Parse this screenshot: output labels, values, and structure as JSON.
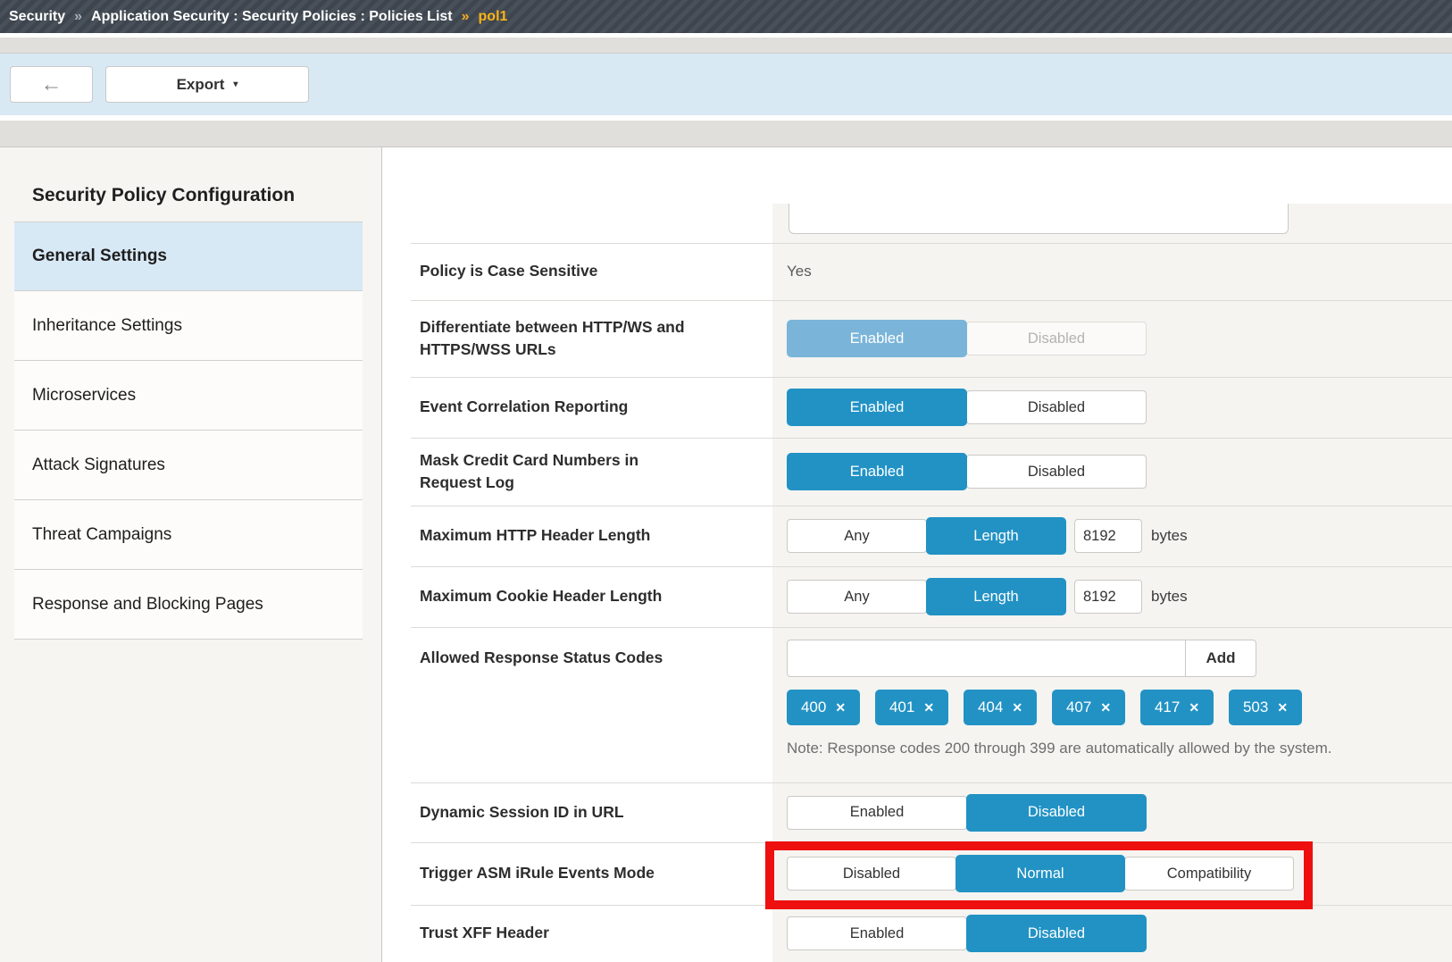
{
  "breadcrumb": {
    "section": "Security",
    "sep1": "»",
    "path": "Application Security : Security Policies : Policies List",
    "sep2": "»",
    "current": "pol1"
  },
  "toolbar": {
    "export_label": "Export"
  },
  "icons": {
    "back_arrow": "←",
    "caret_down": "▾",
    "remove": "✕"
  },
  "sidebar": {
    "title": "Security Policy Configuration",
    "items": [
      {
        "label": "General Settings",
        "selected": true
      },
      {
        "label": "Inheritance Settings",
        "selected": false
      },
      {
        "label": "Microservices",
        "selected": false
      },
      {
        "label": "Attack Signatures",
        "selected": false
      },
      {
        "label": "Threat Campaigns",
        "selected": false
      },
      {
        "label": "Response and Blocking Pages",
        "selected": false
      }
    ]
  },
  "settings": {
    "case_sensitive": {
      "label": "Policy is Case Sensitive",
      "value": "Yes"
    },
    "differentiate": {
      "label": "Differentiate between HTTP/WS and HTTPS/WSS URLs",
      "options": [
        "Enabled",
        "Disabled"
      ],
      "selected": "Enabled",
      "readonly": true
    },
    "event_correlation": {
      "label": "Event Correlation Reporting",
      "options": [
        "Enabled",
        "Disabled"
      ],
      "selected": "Enabled"
    },
    "mask_cc": {
      "label": "Mask Credit Card Numbers in Request Log",
      "options": [
        "Enabled",
        "Disabled"
      ],
      "selected": "Enabled"
    },
    "max_http_header": {
      "label": "Maximum HTTP Header Length",
      "options": [
        "Any",
        "Length"
      ],
      "selected": "Length",
      "value": "8192",
      "unit": "bytes"
    },
    "max_cookie_header": {
      "label": "Maximum Cookie Header Length",
      "options": [
        "Any",
        "Length"
      ],
      "selected": "Length",
      "value": "8192",
      "unit": "bytes"
    },
    "allowed_codes": {
      "label": "Allowed Response Status Codes",
      "input_value": "",
      "add_label": "Add",
      "chips": [
        "400",
        "401",
        "404",
        "407",
        "417",
        "503"
      ],
      "note": "Note: Response codes 200 through 399 are automatically allowed by the system."
    },
    "dynamic_session": {
      "label": "Dynamic Session ID in URL",
      "options": [
        "Enabled",
        "Disabled"
      ],
      "selected": "Disabled"
    },
    "trigger_irule": {
      "label": "Trigger ASM iRule Events Mode",
      "options": [
        "Disabled",
        "Normal",
        "Compatibility"
      ],
      "selected": "Normal",
      "highlighted": true
    },
    "trust_xff": {
      "label": "Trust XFF Header",
      "options": [
        "Enabled",
        "Disabled"
      ],
      "selected": "Disabled"
    }
  },
  "colors": {
    "accent_blue": "#2292c4",
    "readonly_blue": "#7ab5d9",
    "highlight_red": "#ee0f0f",
    "nav_selected": "#d8e9f6",
    "breadcrumb_current": "#fdb515",
    "toolbar_bg": "#d8e9f4"
  }
}
